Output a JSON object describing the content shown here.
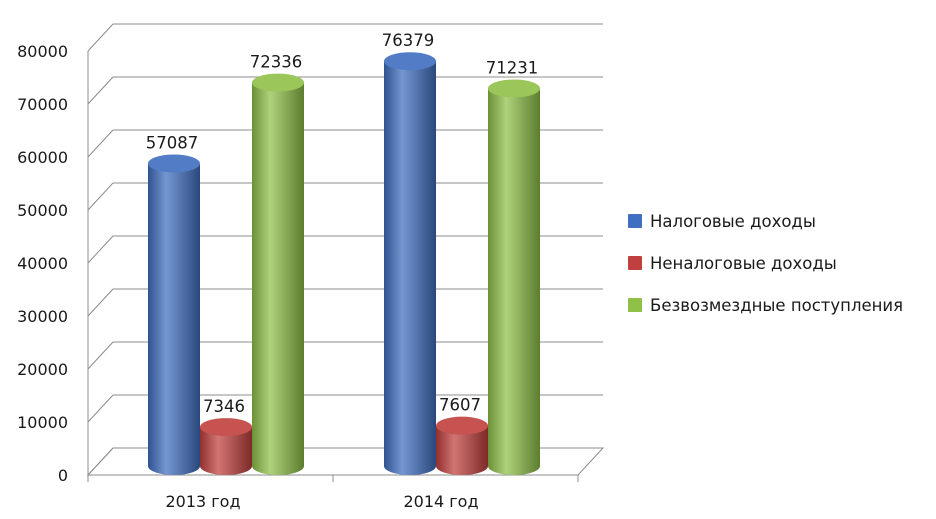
{
  "chart_data": {
    "type": "bar",
    "title": "",
    "xlabel": "",
    "ylabel": "",
    "categories": [
      "2013 год",
      "2014 год"
    ],
    "series": [
      {
        "name": "Налоговые доходы",
        "values": [
          57087,
          76379
        ],
        "color": "#3f6fc0"
      },
      {
        "name": "Неналоговые доходы",
        "values": [
          7346,
          7607
        ],
        "color": "#c0403d"
      },
      {
        "name": "Безвозмездные поступления",
        "values": [
          72336,
          71231
        ],
        "color": "#8fc048"
      }
    ],
    "ylim": [
      0,
      80000
    ],
    "yticks": [
      0,
      10000,
      20000,
      30000,
      40000,
      50000,
      60000,
      70000,
      80000
    ],
    "grid": true,
    "legend_position": "right",
    "data_labels": true
  }
}
